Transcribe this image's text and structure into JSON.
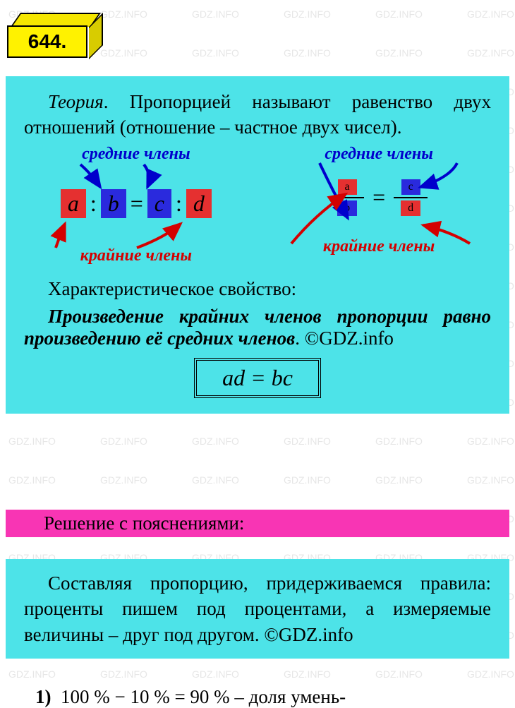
{
  "watermark_text": "GDZ.INFO",
  "watermark_color": "#c8c8c8",
  "badge": {
    "number": "644."
  },
  "theory": {
    "label": "Теория",
    "definition": ". Пропорцией называют равенство двух отношений (отношение – частное двух чисел).",
    "middle_label": "средние члены",
    "extreme_label": "крайние члены",
    "terms": {
      "a": "a",
      "b": "b",
      "c": "c",
      "d": "d"
    },
    "char_heading": "Характеристическое свойство:",
    "char_property": "Произведение крайних членов пропорции равно произведению её средних членов",
    "copyright": ". ©GDZ.info",
    "formula": "ad = bc"
  },
  "solution": {
    "header": "Решение с пояснениями:",
    "text_part1": "Составляя пропорцию, придерживаемся правила: проценты пишем под процентами, а измеряемые величины – друг под другом. ©GDZ.info"
  },
  "footer": {
    "text": "1)  100 % – 10 % = 90 % – доля умень-"
  },
  "colors": {
    "theory_bg": "#4de3e8",
    "badge_yellow": "#fff200",
    "red_box": "#e53030",
    "blue_box": "#2a2add",
    "blue_text": "#0000cc",
    "red_text": "#d40000",
    "pink_header": "#f835b4"
  }
}
